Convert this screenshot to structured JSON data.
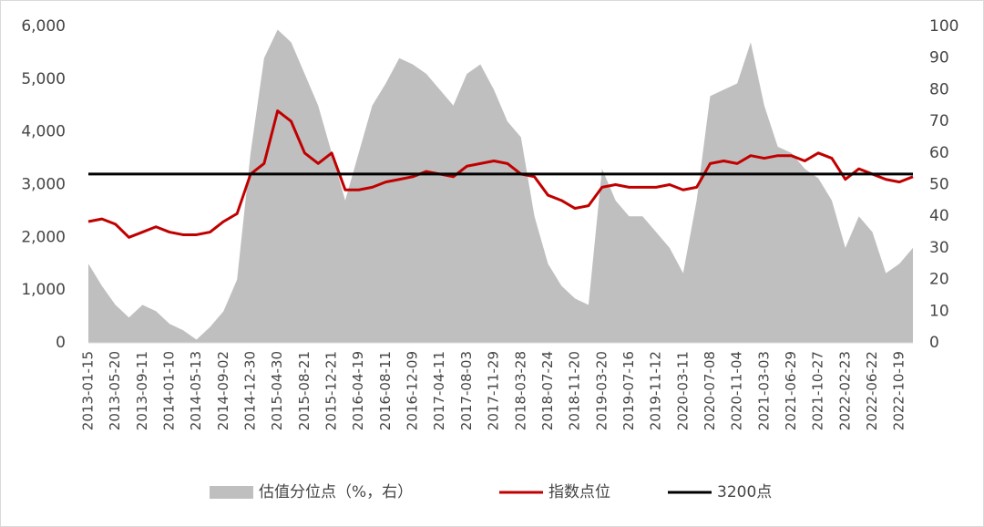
{
  "chart_data": {
    "type": "area-line",
    "categories": [
      "2013-01-15",
      null,
      "2013-05-20",
      null,
      "2013-09-11",
      null,
      "2014-01-10",
      null,
      "2014-05-13",
      null,
      "2014-09-02",
      null,
      "2014-12-30",
      null,
      "2015-04-30",
      null,
      "2015-08-21",
      null,
      "2015-12-21",
      null,
      "2016-04-19",
      null,
      "2016-08-11",
      null,
      "2016-12-09",
      null,
      "2017-04-11",
      null,
      "2017-08-03",
      null,
      "2017-11-29",
      null,
      "2018-03-28",
      null,
      "2018-07-24",
      null,
      "2018-11-20",
      null,
      "2019-03-20",
      null,
      "2019-07-16",
      null,
      "2019-11-12",
      null,
      "2020-03-11",
      null,
      "2020-07-08",
      null,
      "2020-11-04",
      null,
      "2021-03-03",
      null,
      "2021-06-29",
      null,
      "2021-10-27",
      null,
      "2022-02-23",
      null,
      "2022-06-22",
      null,
      "2022-10-19",
      null
    ],
    "series": [
      {
        "name": "估值分位点（%，右）",
        "color": "#bfbfbf",
        "axis": "y2",
        "kind": "area",
        "values": [
          25,
          18,
          12,
          8,
          12,
          10,
          6,
          4,
          1,
          5,
          10,
          20,
          60,
          90,
          99,
          95,
          85,
          75,
          60,
          45,
          60,
          75,
          82,
          90,
          88,
          85,
          80,
          75,
          85,
          88,
          80,
          70,
          65,
          40,
          25,
          18,
          14,
          12,
          55,
          45,
          40,
          40,
          35,
          30,
          22,
          45,
          78,
          80,
          82,
          95,
          75,
          62,
          60,
          55,
          52,
          45,
          30,
          40,
          35,
          22,
          25,
          30
        ]
      },
      {
        "name": "指数点位",
        "color": "#c00000",
        "kind": "line",
        "values": [
          2300,
          2350,
          2250,
          2000,
          2100,
          2200,
          2100,
          2050,
          2050,
          2100,
          2300,
          2450,
          3200,
          3400,
          4400,
          4200,
          3600,
          3400,
          3600,
          2900,
          2900,
          2950,
          3050,
          3100,
          3150,
          3250,
          3200,
          3150,
          3350,
          3400,
          3450,
          3400,
          3200,
          3150,
          2800,
          2700,
          2550,
          2600,
          2950,
          3000,
          2950,
          2950,
          2950,
          3000,
          2900,
          2950,
          3400,
          3450,
          3400,
          3550,
          3500,
          3550,
          3550,
          3450,
          3600,
          3500,
          3100,
          3300,
          3200,
          3100,
          3050,
          3150
        ]
      }
    ],
    "hlines": [
      {
        "name": "3200点",
        "value": 3200,
        "color": "#000000"
      }
    ],
    "ylim": [
      0,
      6000
    ],
    "yticks": [
      0,
      {
        "value": 1000,
        "label": "1,000"
      },
      {
        "value": 2000,
        "label": "2,000"
      },
      {
        "value": 3000,
        "label": "3,000"
      },
      {
        "value": 4000,
        "label": "4,000"
      },
      {
        "value": 5000,
        "label": "5,000"
      },
      {
        "value": 6000,
        "label": "6,000"
      }
    ],
    "y2lim": [
      0,
      100
    ],
    "y2ticks": [
      0,
      10,
      20,
      30,
      40,
      50,
      60,
      70,
      80,
      90,
      100
    ]
  }
}
